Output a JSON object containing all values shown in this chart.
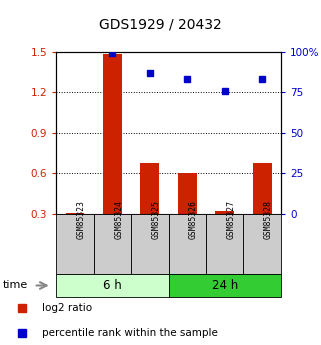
{
  "title": "GDS1929 / 20432",
  "samples": [
    "GSM85323",
    "GSM85324",
    "GSM85325",
    "GSM85326",
    "GSM85327",
    "GSM85328"
  ],
  "log2_ratio": [
    0.305,
    1.48,
    0.68,
    0.6,
    0.32,
    0.68
  ],
  "percentile_rank": [
    null,
    99,
    87,
    83,
    76,
    83
  ],
  "groups": [
    {
      "label": "6 h",
      "indices": [
        0,
        1,
        2
      ],
      "color": "#ccffcc"
    },
    {
      "label": "24 h",
      "indices": [
        3,
        4,
        5
      ],
      "color": "#33cc33"
    }
  ],
  "left_ylim": [
    0.3,
    1.5
  ],
  "left_yticks": [
    0.3,
    0.6,
    0.9,
    1.2,
    1.5
  ],
  "right_ylim": [
    0,
    100
  ],
  "right_yticks": [
    0,
    25,
    50,
    75,
    100
  ],
  "right_yticklabels": [
    "0",
    "25",
    "50",
    "75",
    "100%"
  ],
  "bar_color": "#cc2200",
  "dot_color": "#0000cc",
  "bar_width": 0.5,
  "label_color_left": "#cc2200",
  "label_color_right": "#0000cc",
  "legend_items": [
    {
      "label": "log2 ratio",
      "color": "#cc2200"
    },
    {
      "label": "percentile rank within the sample",
      "color": "#0000cc"
    }
  ],
  "time_label": "time",
  "sample_box_color": "#cccccc",
  "dot_size": 5
}
